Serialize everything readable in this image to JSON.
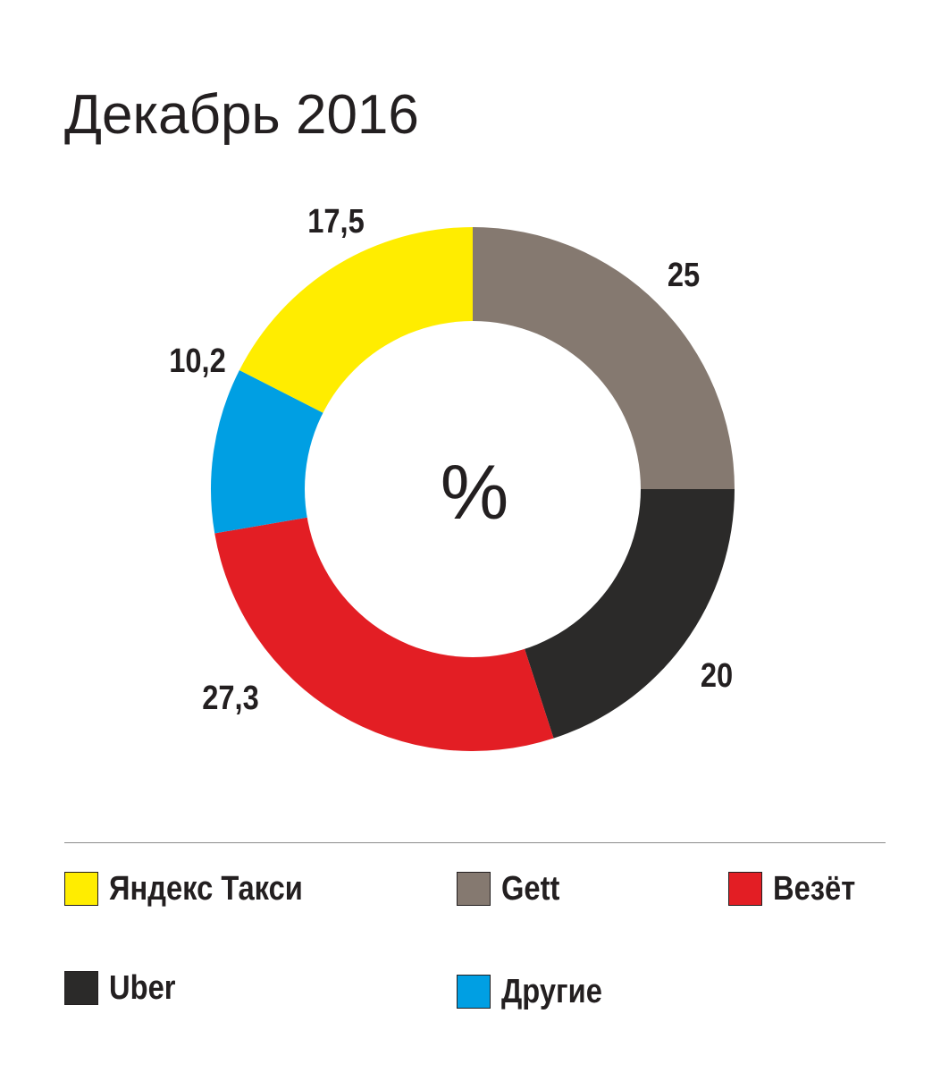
{
  "title": "Декабрь 2016",
  "chart_data": {
    "type": "pie",
    "style": "donut",
    "center_label": "%",
    "categories": [
      "Gett",
      "Uber",
      "Везёт",
      "Другие",
      "Яндекс Такси"
    ],
    "values": [
      25,
      20,
      27.3,
      10.2,
      17.5
    ],
    "value_labels": [
      "25",
      "20",
      "27,3",
      "10,2",
      "17,5"
    ],
    "colors": [
      "#857970",
      "#2b2a29",
      "#e31e24",
      "#009fe3",
      "#ffed00"
    ],
    "legend_placement": "bottom"
  },
  "legend": [
    {
      "label": "Яндекс Такси",
      "color": "#ffed00"
    },
    {
      "label": "Gett",
      "color": "#857970"
    },
    {
      "label": "Везёт",
      "color": "#e31e24"
    },
    {
      "label": "Uber",
      "color": "#2b2a29"
    },
    {
      "label": "Другие",
      "color": "#009fe3"
    }
  ]
}
